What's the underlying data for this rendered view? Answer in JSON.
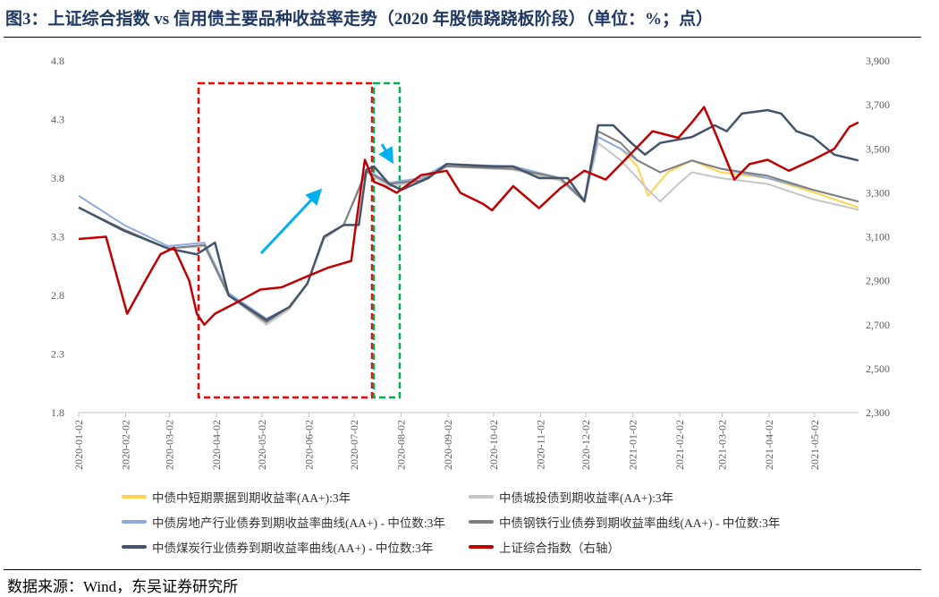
{
  "title": "图3：上证综合指数 vs 信用债主要品种收益率走势（2020 年股债跷跷板阶段）（单位：%；点）",
  "source": "数据来源：Wind，东吴证券研究所",
  "chart_data": {
    "type": "line",
    "left_axis": {
      "ticks": [
        "1.8",
        "2.3",
        "2.8",
        "3.3",
        "3.8",
        "4.3",
        "4.8"
      ],
      "range": [
        1.8,
        4.8
      ]
    },
    "right_axis": {
      "ticks": [
        "2,300",
        "2,500",
        "2,700",
        "2,900",
        "3,100",
        "3,300",
        "3,500",
        "3,700",
        "3,900"
      ],
      "range": [
        2300,
        3900
      ]
    },
    "x_ticks": [
      "2020-01-02",
      "2020-02-02",
      "2020-03-02",
      "2020-04-02",
      "2020-05-02",
      "2020-06-02",
      "2020-07-02",
      "2020-08-02",
      "2020-09-02",
      "2020-10-02",
      "2020-11-02",
      "2020-12-02",
      "2021-01-02",
      "2021-02-02",
      "2021-03-02",
      "2021-04-02",
      "2021-05-02"
    ],
    "x_range": [
      "2020-01-02",
      "2021-05-31"
    ],
    "grid": false,
    "legend_position": "bottom",
    "series": [
      {
        "name": "中债中短期票据到期收益率(AA+):3年",
        "color": "#ffd34d",
        "axis": "left",
        "points": [
          [
            "2020-01-02",
            3.55
          ],
          [
            "2020-02-01",
            3.35
          ],
          [
            "2020-03-01",
            3.2
          ],
          [
            "2020-03-25",
            3.22
          ],
          [
            "2020-04-10",
            2.8
          ],
          [
            "2020-05-05",
            2.57
          ],
          [
            "2020-05-20",
            2.7
          ],
          [
            "2020-06-01",
            2.9
          ],
          [
            "2020-06-12",
            3.3
          ],
          [
            "2020-06-25",
            3.4
          ],
          [
            "2020-07-10",
            3.85
          ],
          [
            "2020-07-25",
            3.75
          ],
          [
            "2020-08-15",
            3.78
          ],
          [
            "2020-09-01",
            3.9
          ],
          [
            "2020-10-15",
            3.88
          ],
          [
            "2020-11-15",
            3.8
          ],
          [
            "2020-12-01",
            3.6
          ],
          [
            "2020-12-10",
            4.15
          ],
          [
            "2020-12-25",
            4.05
          ],
          [
            "2021-01-05",
            3.9
          ],
          [
            "2021-01-12",
            3.65
          ],
          [
            "2021-01-25",
            3.85
          ],
          [
            "2021-02-10",
            3.95
          ],
          [
            "2021-03-01",
            3.85
          ],
          [
            "2021-04-01",
            3.8
          ],
          [
            "2021-05-01",
            3.68
          ],
          [
            "2021-05-31",
            3.55
          ]
        ]
      },
      {
        "name": "中债城投债到期收益率(AA+):3年",
        "color": "#c6c6c6",
        "axis": "left",
        "points": [
          [
            "2020-01-02",
            3.55
          ],
          [
            "2020-02-01",
            3.35
          ],
          [
            "2020-03-01",
            3.2
          ],
          [
            "2020-03-25",
            3.22
          ],
          [
            "2020-04-10",
            2.8
          ],
          [
            "2020-05-05",
            2.55
          ],
          [
            "2020-05-20",
            2.68
          ],
          [
            "2020-06-01",
            2.9
          ],
          [
            "2020-06-12",
            3.28
          ],
          [
            "2020-06-25",
            3.4
          ],
          [
            "2020-07-10",
            3.85
          ],
          [
            "2020-07-25",
            3.73
          ],
          [
            "2020-08-15",
            3.77
          ],
          [
            "2020-09-01",
            3.9
          ],
          [
            "2020-10-15",
            3.87
          ],
          [
            "2020-11-15",
            3.78
          ],
          [
            "2020-12-01",
            3.6
          ],
          [
            "2020-12-10",
            4.1
          ],
          [
            "2020-12-25",
            3.95
          ],
          [
            "2021-01-05",
            3.8
          ],
          [
            "2021-01-12",
            3.7
          ],
          [
            "2021-01-20",
            3.6
          ],
          [
            "2021-02-01",
            3.75
          ],
          [
            "2021-02-10",
            3.85
          ],
          [
            "2021-03-01",
            3.8
          ],
          [
            "2021-04-01",
            3.75
          ],
          [
            "2021-05-01",
            3.62
          ],
          [
            "2021-05-31",
            3.53
          ]
        ]
      },
      {
        "name": "中债房地产行业债券到期收益率曲线(AA+) - 中位数:3年",
        "color": "#8faadc",
        "axis": "left",
        "points": [
          [
            "2020-01-02",
            3.65
          ],
          [
            "2020-02-01",
            3.4
          ],
          [
            "2020-03-01",
            3.22
          ],
          [
            "2020-03-25",
            3.25
          ],
          [
            "2020-04-10",
            2.82
          ],
          [
            "2020-05-05",
            2.6
          ],
          [
            "2020-05-20",
            2.7
          ],
          [
            "2020-06-01",
            2.9
          ],
          [
            "2020-06-12",
            3.3
          ],
          [
            "2020-06-25",
            3.4
          ],
          [
            "2020-07-10",
            3.87
          ],
          [
            "2020-07-25",
            3.76
          ],
          [
            "2020-08-15",
            3.8
          ],
          [
            "2020-09-01",
            3.92
          ],
          [
            "2020-10-15",
            3.9
          ],
          [
            "2020-11-15",
            3.8
          ],
          [
            "2020-12-01",
            3.62
          ],
          [
            "2020-12-10",
            4.15
          ],
          [
            "2020-12-25",
            4.05
          ],
          [
            "2021-01-05",
            3.95
          ],
          [
            "2021-01-20",
            3.85
          ],
          [
            "2021-02-10",
            3.95
          ],
          [
            "2021-03-01",
            3.88
          ],
          [
            "2021-04-01",
            3.8
          ],
          [
            "2021-05-01",
            3.7
          ],
          [
            "2021-05-31",
            3.6
          ]
        ]
      },
      {
        "name": "中债钢铁行业债券到期收益率曲线(AA+) - 中位数:3年",
        "color": "#7f7f7f",
        "axis": "left",
        "points": [
          [
            "2020-01-02",
            3.55
          ],
          [
            "2020-02-01",
            3.36
          ],
          [
            "2020-03-01",
            3.2
          ],
          [
            "2020-03-25",
            3.23
          ],
          [
            "2020-04-10",
            2.8
          ],
          [
            "2020-05-05",
            2.57
          ],
          [
            "2020-05-20",
            2.7
          ],
          [
            "2020-06-01",
            2.9
          ],
          [
            "2020-06-12",
            3.3
          ],
          [
            "2020-06-25",
            3.4
          ],
          [
            "2020-07-10",
            3.86
          ],
          [
            "2020-07-25",
            3.75
          ],
          [
            "2020-08-15",
            3.78
          ],
          [
            "2020-09-01",
            3.9
          ],
          [
            "2020-10-15",
            3.88
          ],
          [
            "2020-11-15",
            3.8
          ],
          [
            "2020-12-01",
            3.6
          ],
          [
            "2020-12-10",
            4.2
          ],
          [
            "2020-12-25",
            4.1
          ],
          [
            "2021-01-05",
            3.95
          ],
          [
            "2021-01-20",
            3.85
          ],
          [
            "2021-02-10",
            3.95
          ],
          [
            "2021-03-01",
            3.88
          ],
          [
            "2021-04-01",
            3.82
          ],
          [
            "2021-05-01",
            3.7
          ],
          [
            "2021-05-31",
            3.6
          ]
        ]
      },
      {
        "name": "中债煤炭行业债券到期收益率曲线(AA+) - 中位数:3年",
        "color": "#44546a",
        "axis": "left",
        "points": [
          [
            "2020-01-02",
            3.55
          ],
          [
            "2020-02-01",
            3.35
          ],
          [
            "2020-03-01",
            3.2
          ],
          [
            "2020-03-20",
            3.15
          ],
          [
            "2020-04-01",
            3.25
          ],
          [
            "2020-04-10",
            2.8
          ],
          [
            "2020-05-05",
            2.59
          ],
          [
            "2020-05-20",
            2.7
          ],
          [
            "2020-06-01",
            2.9
          ],
          [
            "2020-06-12",
            3.3
          ],
          [
            "2020-06-25",
            3.4
          ],
          [
            "2020-07-05",
            3.4
          ],
          [
            "2020-07-10",
            3.87
          ],
          [
            "2020-07-15",
            3.9
          ],
          [
            "2020-07-25",
            3.75
          ],
          [
            "2020-08-02",
            3.7
          ],
          [
            "2020-08-20",
            3.8
          ],
          [
            "2020-09-01",
            3.92
          ],
          [
            "2020-10-01",
            3.9
          ],
          [
            "2020-10-15",
            3.9
          ],
          [
            "2020-11-01",
            3.8
          ],
          [
            "2020-11-20",
            3.8
          ],
          [
            "2020-12-01",
            3.6
          ],
          [
            "2020-12-10",
            4.25
          ],
          [
            "2020-12-20",
            4.25
          ],
          [
            "2021-01-01",
            4.1
          ],
          [
            "2021-01-10",
            4.0
          ],
          [
            "2021-01-20",
            4.1
          ],
          [
            "2021-02-10",
            4.15
          ],
          [
            "2021-02-25",
            4.25
          ],
          [
            "2021-03-05",
            4.2
          ],
          [
            "2021-03-15",
            4.35
          ],
          [
            "2021-04-01",
            4.38
          ],
          [
            "2021-04-10",
            4.35
          ],
          [
            "2021-04-20",
            4.2
          ],
          [
            "2021-05-01",
            4.15
          ],
          [
            "2021-05-15",
            4.0
          ],
          [
            "2021-05-31",
            3.95
          ]
        ]
      },
      {
        "name": "上证综合指数（右轴）",
        "color": "#c00000",
        "axis": "right",
        "points": [
          [
            "2020-01-02",
            3090
          ],
          [
            "2020-01-20",
            3100
          ],
          [
            "2020-02-03",
            2750
          ],
          [
            "2020-02-15",
            2900
          ],
          [
            "2020-02-25",
            3020
          ],
          [
            "2020-03-05",
            3050
          ],
          [
            "2020-03-15",
            2900
          ],
          [
            "2020-03-20",
            2750
          ],
          [
            "2020-03-25",
            2700
          ],
          [
            "2020-04-01",
            2750
          ],
          [
            "2020-04-15",
            2800
          ],
          [
            "2020-05-01",
            2860
          ],
          [
            "2020-05-15",
            2870
          ],
          [
            "2020-06-01",
            2920
          ],
          [
            "2020-06-15",
            2960
          ],
          [
            "2020-06-30",
            2990
          ],
          [
            "2020-07-02",
            3100
          ],
          [
            "2020-07-09",
            3450
          ],
          [
            "2020-07-15",
            3350
          ],
          [
            "2020-07-22",
            3330
          ],
          [
            "2020-07-30",
            3300
          ],
          [
            "2020-08-15",
            3380
          ],
          [
            "2020-09-01",
            3400
          ],
          [
            "2020-09-10",
            3300
          ],
          [
            "2020-09-25",
            3250
          ],
          [
            "2020-10-01",
            3220
          ],
          [
            "2020-10-15",
            3330
          ],
          [
            "2020-11-01",
            3230
          ],
          [
            "2020-11-15",
            3320
          ],
          [
            "2020-12-01",
            3400
          ],
          [
            "2020-12-15",
            3360
          ],
          [
            "2021-01-01",
            3480
          ],
          [
            "2021-01-15",
            3580
          ],
          [
            "2021-02-01",
            3550
          ],
          [
            "2021-02-10",
            3620
          ],
          [
            "2021-02-18",
            3690
          ],
          [
            "2021-02-25",
            3580
          ],
          [
            "2021-03-10",
            3360
          ],
          [
            "2021-03-20",
            3430
          ],
          [
            "2021-04-01",
            3450
          ],
          [
            "2021-04-15",
            3400
          ],
          [
            "2021-05-01",
            3450
          ],
          [
            "2021-05-15",
            3500
          ],
          [
            "2021-05-25",
            3600
          ],
          [
            "2021-05-31",
            3620
          ]
        ]
      }
    ]
  }
}
